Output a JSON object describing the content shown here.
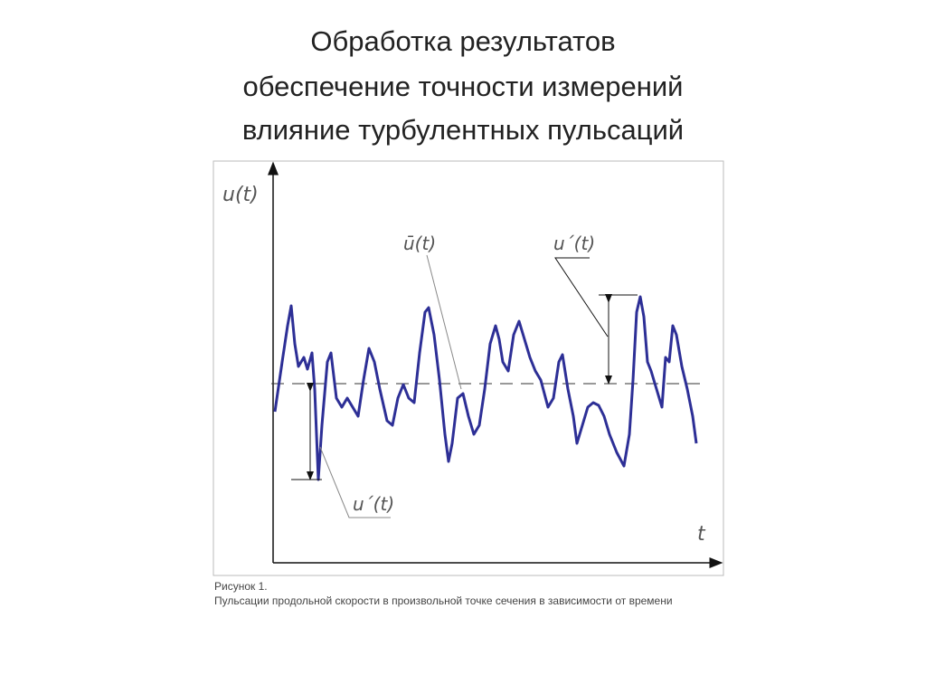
{
  "header": {
    "title_lines": [
      "Обработка результатов",
      "обеспечение точности измерений",
      "влияние турбулентных пульсаций"
    ]
  },
  "figure": {
    "y_axis_label": "u(t)",
    "x_axis_label": "t",
    "mean_label": "ū(t)",
    "fluctuation_label_top": "u´(t)",
    "fluctuation_label_bottom": "u´(t)",
    "caption_title": "Рисунок 1.",
    "caption_text": "Пульсации продольной скорости в произвольной точке сечения в зависимости от времени"
  }
}
